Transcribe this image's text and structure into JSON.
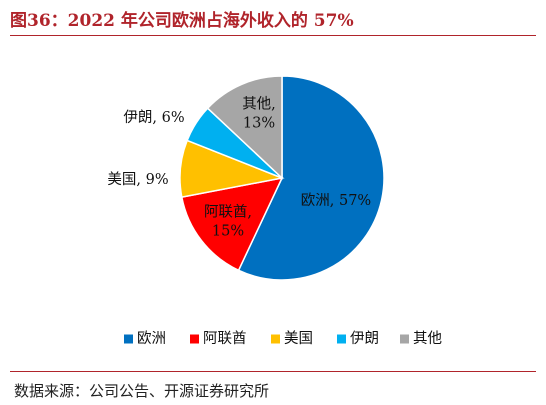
{
  "title": "图36：2022 年公司欧洲占海外收入的 57%",
  "source": "数据来源：公司公告、开源证券研究所",
  "chart_data": {
    "type": "pie",
    "title": "图36：2022 年公司欧洲占海外收入的 57%",
    "categories": [
      "欧洲",
      "阿联酋",
      "美国",
      "伊朗",
      "其他"
    ],
    "values": [
      57,
      15,
      9,
      6,
      13
    ],
    "colors": [
      "#0070c0",
      "#ff0000",
      "#ffc000",
      "#00b0f0",
      "#a6a6a6"
    ],
    "labels": [
      [
        "欧洲, 57%"
      ],
      [
        "阿联酋,",
        "15%"
      ],
      [
        "美国, 9%"
      ],
      [
        "伊朗, 6%"
      ],
      [
        "其他,",
        "13%"
      ]
    ],
    "legend_position": "bottom",
    "start": "top",
    "direction": "clockwise"
  }
}
